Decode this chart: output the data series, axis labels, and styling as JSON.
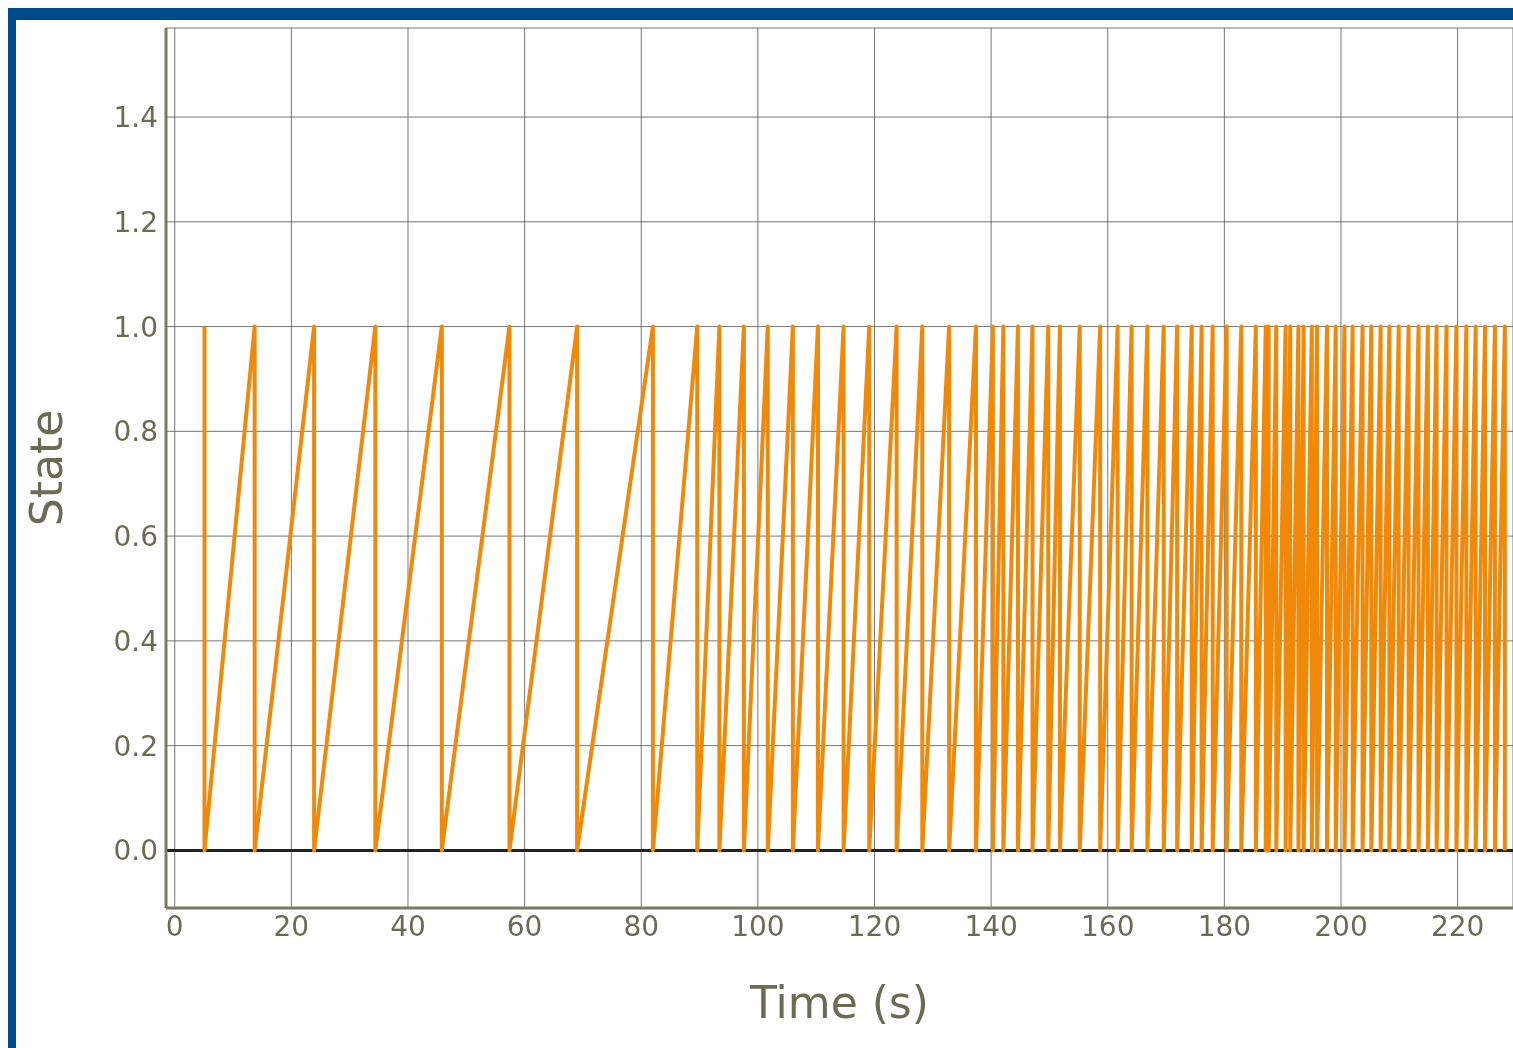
{
  "chart_data": {
    "type": "line",
    "xlabel": "Time (s)",
    "ylabel": "State",
    "xlim": [
      -1.5,
      229.5
    ],
    "ylim": [
      -0.11,
      1.57
    ],
    "xticks": [
      0,
      20,
      40,
      60,
      80,
      100,
      120,
      140,
      160,
      180,
      200,
      220
    ],
    "yticks": [
      {
        "value": 0,
        "label": "0.0"
      },
      0.2,
      0.4,
      0.6,
      0.8,
      {
        "value": 1,
        "label": "1.0"
      },
      1.2,
      1.4
    ],
    "grid": true,
    "legend": false,
    "marker": "none",
    "line_style": "solid",
    "ref_lines": [
      {
        "axis": "y",
        "value": 0,
        "label": null,
        "color": "#222222"
      }
    ],
    "series": [
      {
        "color": "#f0890a",
        "x": [
          5.1,
          5.1,
          13.7,
          13.7,
          23.9,
          23.9,
          34.4,
          34.4,
          45.8,
          45.8,
          57.4,
          57.4,
          69.0,
          69.0,
          82.0,
          82.0,
          89.6,
          89.6,
          93.4,
          93.4,
          97.6,
          97.6,
          101.7,
          101.7,
          106.0,
          106.0,
          110.3,
          110.3,
          114.7,
          114.7,
          119.1,
          119.1,
          123.8,
          123.8,
          128.2,
          128.2,
          132.8,
          132.8,
          137.4,
          137.4,
          140.3,
          140.3,
          142.1,
          142.1,
          144.6,
          144.6,
          147.1,
          147.1,
          149.8,
          149.8,
          151.8,
          151.8,
          155.2,
          155.2,
          158.7,
          158.7,
          161.7,
          161.7,
          164.1,
          164.1,
          166.8,
          166.8,
          169.6,
          169.6,
          171.9,
          171.9,
          174.4,
          174.4,
          176.1,
          176.1,
          178.0,
          178.0,
          180.4,
          180.4,
          182.9,
          182.9,
          185.4,
          185.4,
          187.1,
          187.1,
          187.6,
          187.6,
          188.9,
          188.9,
          190.5,
          190.5,
          191.3,
          191.3,
          192.7,
          192.7,
          193.6,
          193.6,
          195.0,
          195.0,
          195.9,
          195.9,
          197.6,
          197.6,
          199.1,
          199.1,
          200.6,
          200.6,
          202.0,
          202.0,
          203.7,
          203.7,
          205.2,
          205.2,
          206.8,
          206.8,
          208.3,
          208.3,
          209.9,
          209.9,
          211.6,
          211.6,
          213.3,
          213.3,
          214.9,
          214.9,
          216.4,
          216.4,
          218.1,
          218.1,
          219.8,
          219.8,
          221.5,
          221.5,
          223.1,
          223.1,
          224.7,
          224.7,
          226.4,
          226.4,
          228.1,
          228.1
        ],
        "values": [
          1,
          0,
          1,
          0,
          1,
          0,
          1,
          0,
          1,
          0,
          1,
          0,
          1,
          0,
          1,
          0,
          1,
          0,
          1,
          0,
          1,
          0,
          1,
          0,
          1,
          0,
          1,
          0,
          1,
          0,
          1,
          0,
          1,
          0,
          1,
          0,
          1,
          0,
          1,
          0,
          1,
          0,
          1,
          0,
          1,
          0,
          1,
          0,
          1,
          0,
          1,
          0,
          1,
          0,
          1,
          0,
          1,
          0,
          1,
          0,
          1,
          0,
          1,
          0,
          1,
          0,
          1,
          0,
          1,
          0,
          1,
          0,
          1,
          0,
          1,
          0,
          1,
          0,
          1,
          0,
          1,
          0,
          1,
          0,
          1,
          0,
          1,
          0,
          1,
          0,
          1,
          0,
          1,
          0,
          1,
          0,
          1,
          0,
          1,
          0,
          1,
          0,
          1,
          0,
          1,
          0,
          1,
          0,
          1,
          0,
          1,
          0,
          1,
          0,
          1,
          0,
          1,
          0,
          1,
          0,
          1,
          0,
          1,
          0,
          1,
          0,
          1,
          0,
          1,
          0,
          1,
          0,
          1,
          0,
          1,
          0
        ]
      }
    ]
  }
}
